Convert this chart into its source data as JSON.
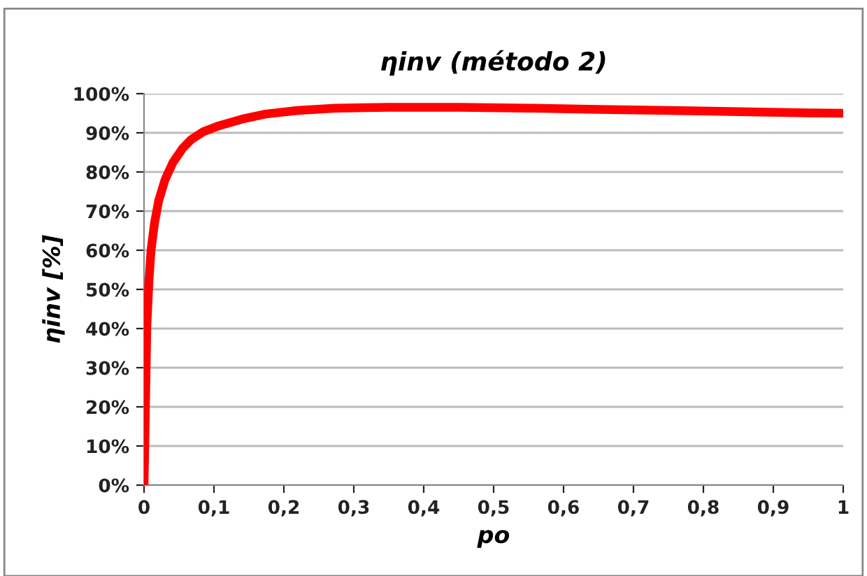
{
  "chart_data": {
    "type": "line",
    "title": "ηinv (método 2)",
    "xlabel": "po",
    "ylabel": "ηinv [%]",
    "series": [
      {
        "color": "#ff0000",
        "x": [
          0,
          0.002,
          0.004,
          0.007,
          0.01,
          0.015,
          0.021,
          0.03,
          0.041,
          0.055,
          0.067,
          0.085,
          0.107,
          0.14,
          0.174,
          0.22,
          0.274,
          0.35,
          0.45,
          0.55,
          0.65,
          0.75,
          0.85,
          0.95,
          1
        ],
        "values": [
          0,
          20,
          40.6,
          52,
          60,
          67,
          72.7,
          78,
          82.3,
          86,
          88.2,
          90.3,
          91.8,
          93.5,
          94.8,
          95.7,
          96.3,
          96.5,
          96.5,
          96.3,
          96,
          95.7,
          95.4,
          95.1,
          95
        ]
      }
    ],
    "xlim": [
      0,
      1
    ],
    "ylim": [
      0,
      100
    ],
    "xticks": [
      0,
      {
        "value": 0.1,
        "label": "0,1"
      },
      {
        "value": 0.2,
        "label": "0,2"
      },
      {
        "value": 0.3,
        "label": "0,3"
      },
      {
        "value": 0.4,
        "label": "0,4"
      },
      {
        "value": 0.5,
        "label": "0,5"
      },
      {
        "value": 0.6,
        "label": "0,6"
      },
      {
        "value": 0.7,
        "label": "0,7"
      },
      {
        "value": 0.8,
        "label": "0,8"
      },
      {
        "value": 0.9,
        "label": "0,9"
      },
      1
    ],
    "yticks": [
      {
        "value": 0,
        "label": "0%"
      },
      {
        "value": 10,
        "label": "10%"
      },
      {
        "value": 20,
        "label": "20%"
      },
      {
        "value": 30,
        "label": "30%"
      },
      {
        "value": 40,
        "label": "40%"
      },
      {
        "value": 50,
        "label": "50%"
      },
      {
        "value": 60,
        "label": "60%"
      },
      {
        "value": 70,
        "label": "70%"
      },
      {
        "value": 80,
        "label": "80%"
      },
      {
        "value": 90,
        "label": "90%"
      },
      {
        "value": 100,
        "label": "100%"
      }
    ],
    "grid": "y",
    "marker": "none",
    "line_style": "solid"
  }
}
